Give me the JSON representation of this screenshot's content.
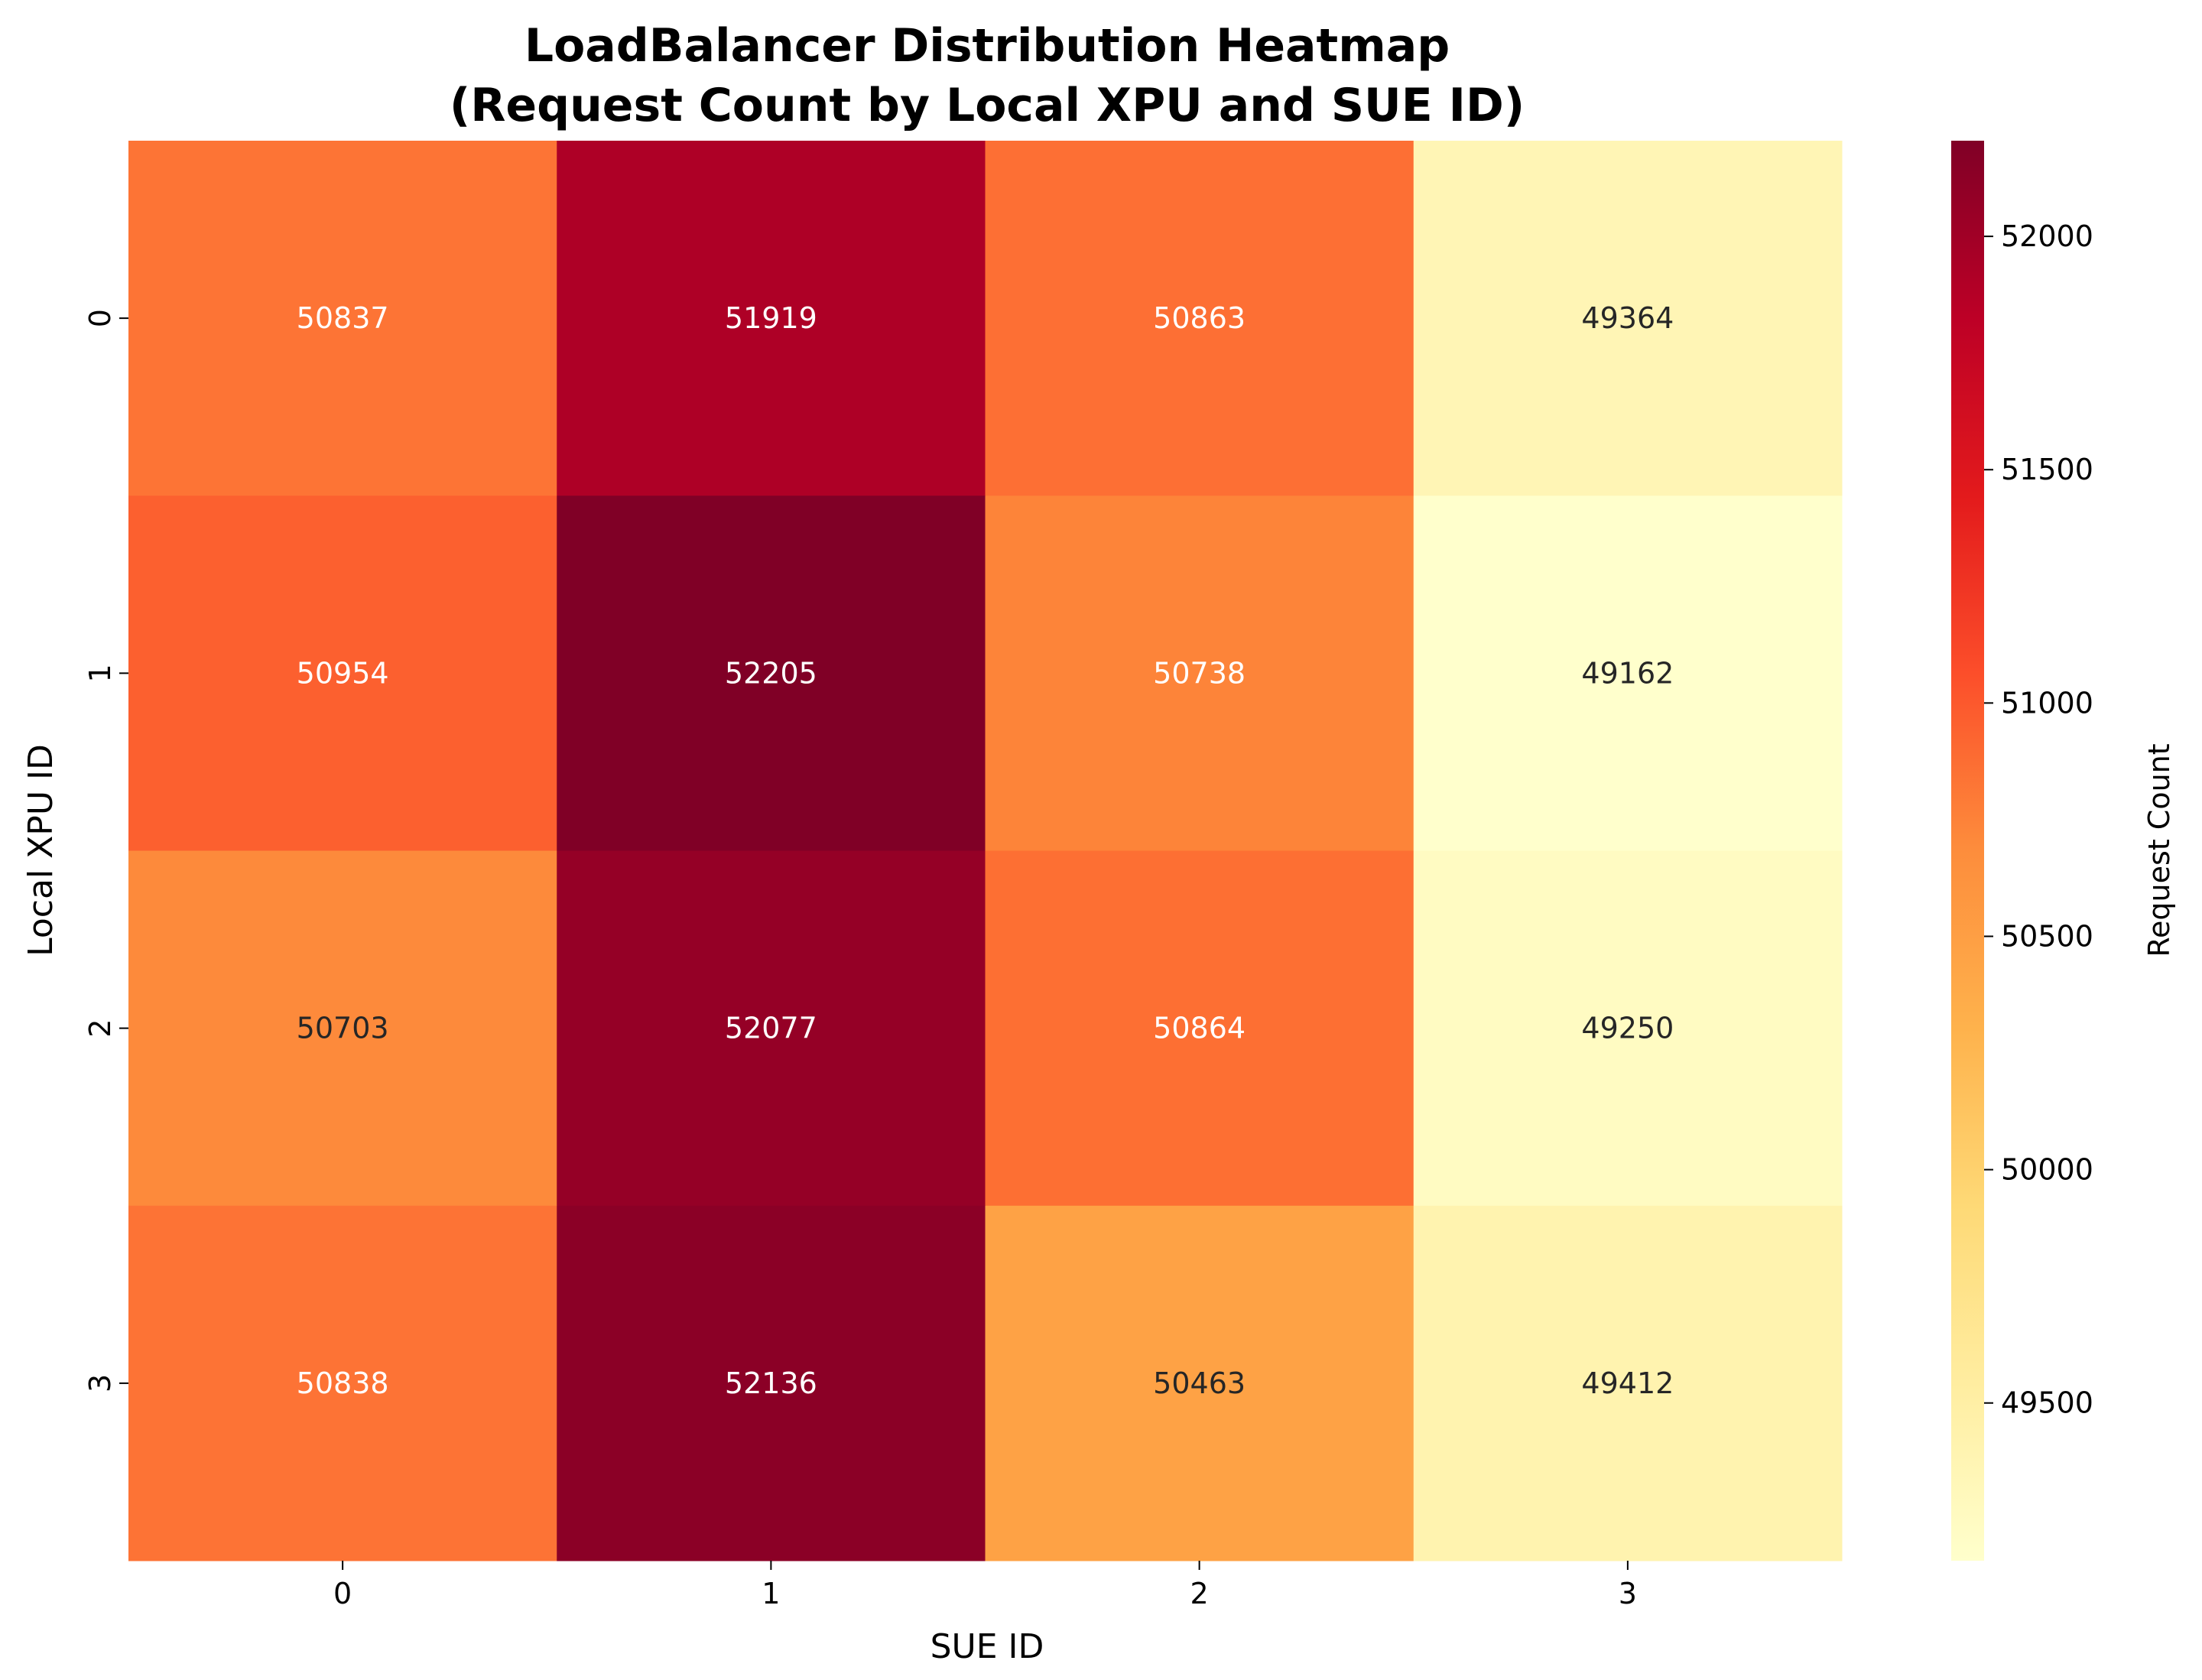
{
  "chart_data": {
    "type": "heatmap",
    "title": "LoadBalancer Distribution Heatmap",
    "subtitle": "(Request Count by Local XPU and SUE ID)",
    "xlabel": "SUE ID",
    "ylabel": "Local XPU ID",
    "x_categories": [
      "0",
      "1",
      "2",
      "3"
    ],
    "y_categories": [
      "0",
      "1",
      "2",
      "3"
    ],
    "values": [
      [
        50837,
        51919,
        50863,
        49364
      ],
      [
        50954,
        52205,
        50738,
        49162
      ],
      [
        50703,
        52077,
        50864,
        49250
      ],
      [
        50838,
        52136,
        50463,
        49412
      ]
    ],
    "colorbar": {
      "label": "Request Count",
      "colormap": "YlOrRd",
      "vmin": 49162,
      "vmax": 52205,
      "ticks": [
        49500,
        50000,
        50500,
        51000,
        51500,
        52000
      ]
    },
    "colors": {
      "stops": [
        "#ffffcc",
        "#ffeda0",
        "#fed976",
        "#feb24c",
        "#fd8d3c",
        "#fc4e2a",
        "#e31a1c",
        "#bd0026",
        "#800026"
      ]
    }
  }
}
